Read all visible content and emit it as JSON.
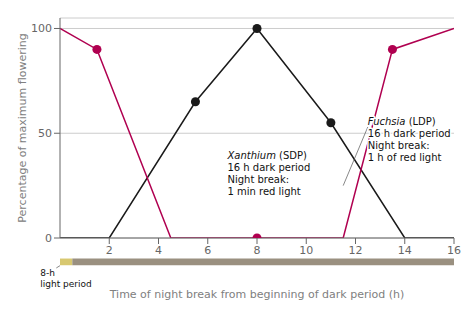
{
  "chart_data": {
    "type": "line",
    "xlabel": "Time of night break from beginning of dark period (h)",
    "ylabel": "Percentage of maximum flowering",
    "xlim": [
      0,
      16
    ],
    "ylim": [
      0,
      105
    ],
    "xticks": [
      2,
      4,
      6,
      8,
      10,
      12,
      14,
      16
    ],
    "yticks": [
      0,
      50,
      100
    ],
    "grid": true,
    "series": [
      {
        "type": "line",
        "color": "#1a1a1a",
        "x": [
          0,
          2,
          5.5,
          8,
          11,
          14,
          16
        ],
        "values": [
          0,
          0,
          65,
          100,
          55,
          0,
          0
        ]
      },
      {
        "type": "line",
        "color": "#b00050",
        "x": [
          0,
          1.5,
          4.5,
          8,
          11.5,
          13.5,
          16
        ],
        "values": [
          100,
          90,
          0,
          0,
          0,
          90,
          100
        ]
      },
      {
        "type": "scatter",
        "color": "#1a1a1a",
        "x": [
          5.5,
          8,
          11
        ],
        "values": [
          65,
          100,
          55
        ]
      },
      {
        "type": "scatter",
        "color": "#b00050",
        "x": [
          1.5,
          8,
          13.5
        ],
        "values": [
          90,
          0,
          90
        ]
      }
    ],
    "bands": [
      {
        "from": 0,
        "to": 0.5,
        "color": "#d8c870"
      },
      {
        "from": 0.5,
        "to": 16,
        "color": "#9a9080"
      }
    ],
    "annotations": [
      {
        "lines": [
          "Xanthium (SDP)",
          "16 h dark period",
          "Night break:",
          "1 min red light"
        ]
      },
      {
        "lines": [
          "Fuchsia (LDP)",
          "16 h dark period",
          "Night break:",
          "1 h of red light"
        ]
      },
      {
        "lines": [
          "8-h",
          "light period"
        ]
      }
    ]
  }
}
